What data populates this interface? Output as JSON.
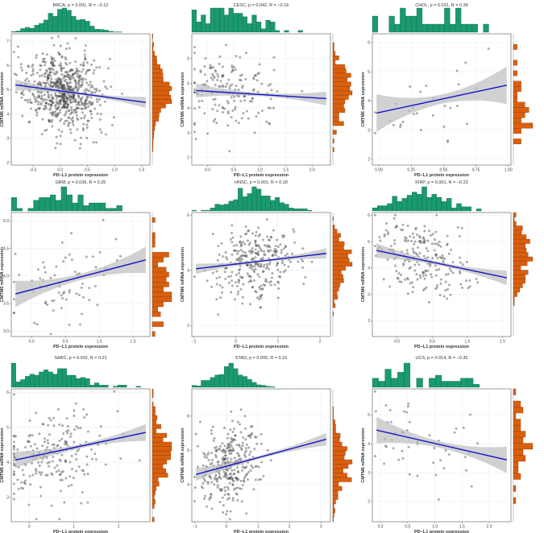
{
  "figure": {
    "fill_points": "#444444",
    "fill_top_hist": "#1a9a6e",
    "fill_right_hist": "#d95f0e",
    "fill_band": "#bdbdbd",
    "fill_line": "#1414c8"
  },
  "chart_data": [
    {
      "type": "scatter",
      "title": "BRCA, p = 0.001, R = −0.12",
      "xlabel": "PD−L1 protein expression",
      "ylabel": "CMTM6 mRNA expression",
      "xlim": [
        -0.9,
        1.65
      ],
      "ylim": [
        1.9,
        7.3
      ],
      "xticks": [
        "-0.5",
        "0.0",
        "0.5",
        "1.0",
        "1.5"
      ],
      "xtickv": [
        -0.5,
        0,
        0.5,
        1,
        1.5
      ],
      "yticks": [
        "2",
        "3",
        "4",
        "5",
        "6",
        "7"
      ],
      "ytickv": [
        2,
        3,
        4,
        5,
        6,
        7
      ],
      "n": 700,
      "x_mean": 0.05,
      "x_sd": 0.33,
      "y_mean": 4.9,
      "y_sd": 0.75,
      "fit": {
        "slope": -0.3,
        "intercept": 4.95
      },
      "band": 0.12,
      "top_bins": 30,
      "right_bins": 30
    },
    {
      "type": "scatter",
      "title": "CESC, p = 0.042, R = −0.16",
      "xlabel": "PD−L1 protein expression",
      "ylabel": "CMTM6 mRNA expression",
      "xlim": [
        -0.3,
        2.35
      ],
      "ylim": [
        1.7,
        7.0
      ],
      "xticks": [
        "0.0",
        "0.5",
        "1.0",
        "1.5",
        "2.0"
      ],
      "xtickv": [
        0,
        0.5,
        1,
        1.5,
        2
      ],
      "yticks": [
        "2",
        "3",
        "4",
        "5",
        "6"
      ],
      "ytickv": [
        2,
        3,
        4,
        5,
        6
      ],
      "n": 170,
      "x_mean": 0.5,
      "x_sd": 0.45,
      "y_mean": 4.6,
      "y_sd": 0.8,
      "fit": {
        "slope": -0.13,
        "intercept": 4.68
      },
      "band": 0.15,
      "top_bins": 30,
      "right_bins": 30
    },
    {
      "type": "scatter",
      "title": "CHOL, p = 0.031, R = 0.39",
      "xlabel": "PD−L1 protein expression",
      "ylabel": "CMTM6 mRNA expression",
      "xlim": [
        -0.05,
        1.02
      ],
      "ylim": [
        1.8,
        6.3
      ],
      "xticks": [
        "0.00",
        "0.25",
        "0.50",
        "0.75",
        "1.00"
      ],
      "xtickv": [
        0,
        0.25,
        0.5,
        0.75,
        1
      ],
      "yticks": [
        "2",
        "3",
        "4",
        "5",
        "6"
      ],
      "ytickv": [
        2,
        3,
        4,
        5,
        6
      ],
      "n": 30,
      "x_mean": 0.35,
      "x_sd": 0.25,
      "y_mean": 3.9,
      "y_sd": 0.75,
      "fit": {
        "slope": 0.95,
        "intercept": 3.6
      },
      "band": 0.35,
      "top_bins": 25,
      "right_bins": 25
    },
    {
      "type": "scatter",
      "title": "GBM, p = 0.039, R = 0.25",
      "xlabel": "PD−L1 protein expression",
      "ylabel": "CMTM6 mRNA expression",
      "xlim": [
        -0.3,
        1.75
      ],
      "ylim": [
        2.9,
        5.15
      ],
      "xticks": [
        "0.0",
        "0.5",
        "1.0",
        "1.5"
      ],
      "xtickv": [
        0,
        0.5,
        1,
        1.5
      ],
      "yticks": [
        "3.0",
        "3.5",
        "4.0",
        "4.5",
        "5.0"
      ],
      "ytickv": [
        3,
        3.5,
        4,
        4.5,
        5
      ],
      "n": 70,
      "x_mean": 0.45,
      "x_sd": 0.4,
      "y_mean": 4.05,
      "y_sd": 0.4,
      "fit": {
        "slope": 0.32,
        "intercept": 3.75
      },
      "band": 0.13,
      "top_bins": 25,
      "right_bins": 25
    },
    {
      "type": "scatter",
      "title": "HNSC, p = 0.001, R = 0.18",
      "xlabel": "PD−L1 protein expression",
      "ylabel": "CMTM6 mRNA expression",
      "xlim": [
        -1.05,
        2.25
      ],
      "ylim": [
        1.6,
        6.1
      ],
      "xticks": [
        "−1",
        "0",
        "1",
        "2"
      ],
      "xtickv": [
        -1,
        0,
        1,
        2
      ],
      "yticks": [
        "2",
        "4",
        "6"
      ],
      "ytickv": [
        2,
        4,
        6
      ],
      "n": 300,
      "x_mean": 0.4,
      "x_sd": 0.5,
      "y_mean": 4.3,
      "y_sd": 0.65,
      "fit": {
        "slope": 0.18,
        "intercept": 4.23
      },
      "band": 0.1,
      "top_bins": 30,
      "right_bins": 30
    },
    {
      "type": "scatter",
      "title": "KIRP, p = 0.001, R = −0.23",
      "xlabel": "PD−L1 protein expression",
      "ylabel": "CMTM6 mRNA expression",
      "xlim": [
        -0.35,
        1.62
      ],
      "ylim": [
        1.4,
        6.1
      ],
      "xticks": [
        "0.0",
        "0.5",
        "1.0",
        "1.5"
      ],
      "xtickv": [
        0,
        0.5,
        1,
        1.5
      ],
      "yticks": [
        "2",
        "3",
        "4",
        "5",
        "6"
      ],
      "ytickv": [
        2,
        3,
        4,
        5,
        6
      ],
      "n": 210,
      "x_mean": 0.35,
      "x_sd": 0.35,
      "y_mean": 4.25,
      "y_sd": 0.7,
      "fit": {
        "slope": -0.56,
        "intercept": 4.5
      },
      "band": 0.15,
      "top_bins": 28,
      "right_bins": 28
    },
    {
      "type": "scatter",
      "title": "SARC, p = 0.002, R = 0.21",
      "xlabel": "PD−L1 protein expression",
      "ylabel": "CMTM6 mRNA expression",
      "xlim": [
        -0.4,
        2.7
      ],
      "ylim": [
        2.3,
        6.1
      ],
      "xticks": [
        "0",
        "1",
        "2"
      ],
      "xtickv": [
        0,
        1,
        2
      ],
      "yticks": [
        "3",
        "4",
        "5",
        "6"
      ],
      "ytickv": [
        3,
        4,
        5,
        6
      ],
      "n": 220,
      "x_mean": 0.55,
      "x_sd": 0.6,
      "y_mean": 4.3,
      "y_sd": 0.6,
      "fit": {
        "slope": 0.27,
        "intercept": 4.15
      },
      "band": 0.13,
      "top_bins": 30,
      "right_bins": 30
    },
    {
      "type": "scatter",
      "title": "STAD, p = 0.005, R = 0.15",
      "xlabel": "PD−L1 protein expression",
      "ylabel": "CMTM6 mRNA expression",
      "xlim": [
        -1.1,
        3.3
      ],
      "ylim": [
        2.9,
        6.8
      ],
      "xticks": [
        "−1",
        "0",
        "1",
        "2",
        "3"
      ],
      "xtickv": [
        -1,
        0,
        1,
        2,
        3
      ],
      "yticks": [
        "4",
        "5",
        "6"
      ],
      "ytickv": [
        4,
        5,
        6
      ],
      "n": 320,
      "x_mean": 0.1,
      "x_sd": 0.45,
      "y_mean": 4.65,
      "y_sd": 0.55,
      "fit": {
        "slope": 0.25,
        "intercept": 4.53
      },
      "band": 0.1,
      "top_bins": 30,
      "right_bins": 30
    },
    {
      "type": "scatter",
      "title": "UCS, p = 0.014, R = −0.35",
      "xlabel": "PD−L1 protein expression",
      "ylabel": "CMTM6 mRNA expression",
      "xlim": [
        -0.15,
        2.4
      ],
      "ylim": [
        1.3,
        5.9
      ],
      "xticks": [
        "0.0",
        "0.5",
        "1.0",
        "1.5",
        "2.0"
      ],
      "xtickv": [
        0,
        0.5,
        1,
        1.5,
        2
      ],
      "yticks": [
        "2",
        "3",
        "4",
        "5"
      ],
      "ytickv": [
        2,
        3,
        4,
        5
      ],
      "n": 50,
      "x_mean": 0.7,
      "x_sd": 0.55,
      "y_mean": 4.05,
      "y_sd": 0.8,
      "fit": {
        "slope": -0.43,
        "intercept": 4.44
      },
      "band": 0.25,
      "top_bins": 22,
      "right_bins": 22
    }
  ]
}
